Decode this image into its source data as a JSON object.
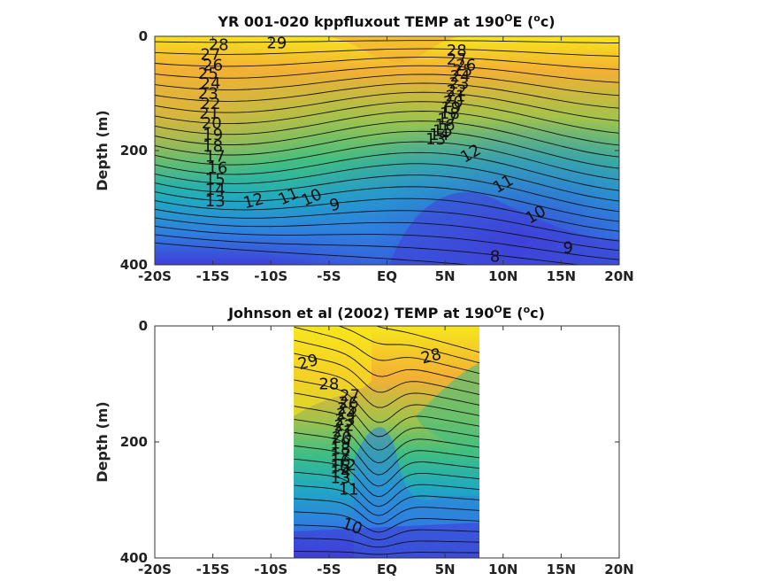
{
  "chart_data": [
    {
      "type": "heatmap",
      "title": "YR 001-020 kppfluxout TEMP at 190",
      "title_sup": "O",
      "title_mid": "E (",
      "title_sup2": "o",
      "title_end": "c)",
      "ylabel": "Depth (m)",
      "xlim": [
        -20,
        20
      ],
      "ylim": [
        0,
        400
      ],
      "xtick_values": [
        -20,
        -15,
        -10,
        -5,
        0,
        5,
        10,
        15,
        20
      ],
      "xtick_labels": [
        "-20S",
        "-15S",
        "-10S",
        "-5S",
        "EQ",
        "5N",
        "10N",
        "15N",
        "20N"
      ],
      "ytick_values": [
        0,
        200,
        400
      ],
      "ytick_labels": [
        "0",
        "200",
        "400"
      ],
      "data_extent": [
        -20,
        20
      ],
      "colorscale": [
        "#3f3fd8",
        "#2f7fe0",
        "#1fa9c2",
        "#3fbf82",
        "#a6c24a",
        "#f3b034",
        "#f6e61c"
      ],
      "contour_labels": [
        {
          "text": "29",
          "x": -9.5,
          "y": 12,
          "angle": 0
        },
        {
          "text": "28",
          "x": -14.5,
          "y": 15,
          "angle": 0
        },
        {
          "text": "28",
          "x": 6.0,
          "y": 25,
          "angle": 0
        },
        {
          "text": "27",
          "x": -15.2,
          "y": 32,
          "angle": 0
        },
        {
          "text": "26",
          "x": -15.0,
          "y": 50,
          "angle": 0
        },
        {
          "text": "25",
          "x": -15.4,
          "y": 65,
          "angle": 0
        },
        {
          "text": "24",
          "x": -15.2,
          "y": 82,
          "angle": 0
        },
        {
          "text": "23",
          "x": -15.4,
          "y": 100,
          "angle": 0
        },
        {
          "text": "22",
          "x": -15.2,
          "y": 118,
          "angle": 0
        },
        {
          "text": "21",
          "x": -15.3,
          "y": 135,
          "angle": 0
        },
        {
          "text": "20",
          "x": -15.1,
          "y": 152,
          "angle": 0
        },
        {
          "text": "19",
          "x": -15.0,
          "y": 172,
          "angle": 0
        },
        {
          "text": "18",
          "x": -15.0,
          "y": 192,
          "angle": 0
        },
        {
          "text": "17",
          "x": -14.8,
          "y": 210,
          "angle": 0
        },
        {
          "text": "16",
          "x": -14.6,
          "y": 230,
          "angle": 0
        },
        {
          "text": "15",
          "x": -14.8,
          "y": 250,
          "angle": 0
        },
        {
          "text": "14",
          "x": -14.8,
          "y": 268,
          "angle": 0
        },
        {
          "text": "13",
          "x": -14.8,
          "y": 288,
          "angle": 0
        },
        {
          "text": "12",
          "x": -11.5,
          "y": 288,
          "angle": -15
        },
        {
          "text": "11",
          "x": -8.5,
          "y": 280,
          "angle": -25
        },
        {
          "text": "10",
          "x": -6.5,
          "y": 282,
          "angle": -25
        },
        {
          "text": "9",
          "x": -4.5,
          "y": 295,
          "angle": -15
        },
        {
          "text": "8",
          "x": 9.3,
          "y": 385,
          "angle": 0
        },
        {
          "text": "27",
          "x": 6.0,
          "y": 40,
          "angle": 0
        },
        {
          "text": "26",
          "x": 6.8,
          "y": 50,
          "angle": 0
        },
        {
          "text": "25",
          "x": 6.5,
          "y": 60,
          "angle": 0
        },
        {
          "text": "24",
          "x": 6.3,
          "y": 70,
          "angle": 0
        },
        {
          "text": "23",
          "x": 6.2,
          "y": 82,
          "angle": 0
        },
        {
          "text": "22",
          "x": 6.0,
          "y": 95,
          "angle": 0
        },
        {
          "text": "21",
          "x": 5.9,
          "y": 105,
          "angle": 0
        },
        {
          "text": "20",
          "x": 5.7,
          "y": 115,
          "angle": 0
        },
        {
          "text": "19",
          "x": 5.5,
          "y": 125,
          "angle": 0
        },
        {
          "text": "18",
          "x": 5.4,
          "y": 135,
          "angle": 0
        },
        {
          "text": "17",
          "x": 5.2,
          "y": 145,
          "angle": 0
        },
        {
          "text": "16",
          "x": 5.0,
          "y": 155,
          "angle": 0
        },
        {
          "text": "15",
          "x": 4.8,
          "y": 165,
          "angle": 0
        },
        {
          "text": "14",
          "x": 4.5,
          "y": 172,
          "angle": 0
        },
        {
          "text": "13",
          "x": 4.2,
          "y": 180,
          "angle": 0
        },
        {
          "text": "12",
          "x": 7.2,
          "y": 205,
          "angle": -30
        },
        {
          "text": "11",
          "x": 10.0,
          "y": 258,
          "angle": -30
        },
        {
          "text": "10",
          "x": 12.8,
          "y": 312,
          "angle": -30
        },
        {
          "text": "9",
          "x": 15.6,
          "y": 370,
          "angle": 0
        }
      ]
    },
    {
      "type": "heatmap",
      "title": "Johnson et al (2002) TEMP at 190",
      "title_sup": "O",
      "title_mid": "E (",
      "title_sup2": "o",
      "title_end": "c)",
      "ylabel": "Depth (m)",
      "xlim": [
        -20,
        20
      ],
      "ylim": [
        0,
        400
      ],
      "xtick_values": [
        -20,
        -15,
        -10,
        -5,
        0,
        5,
        10,
        15,
        20
      ],
      "xtick_labels": [
        "-20S",
        "-15S",
        "-10S",
        "-5S",
        "EQ",
        "5N",
        "10N",
        "15N",
        "20N"
      ],
      "ytick_values": [
        0,
        200,
        400
      ],
      "ytick_labels": [
        "0",
        "200",
        "400"
      ],
      "data_extent": [
        -8,
        8
      ],
      "colorscale": [
        "#3f3fd8",
        "#2f7fe0",
        "#1fa9c2",
        "#3fbf82",
        "#a6c24a",
        "#f3b034",
        "#f6e61c"
      ],
      "contour_labels": [
        {
          "text": "29",
          "x": -6.8,
          "y": 62,
          "angle": -15
        },
        {
          "text": "28",
          "x": -5.0,
          "y": 100,
          "angle": 0
        },
        {
          "text": "28",
          "x": 3.8,
          "y": 52,
          "angle": -15
        },
        {
          "text": "27",
          "x": -3.2,
          "y": 120,
          "angle": 0
        },
        {
          "text": "26",
          "x": -3.3,
          "y": 132,
          "angle": 0
        },
        {
          "text": "25",
          "x": -3.4,
          "y": 142,
          "angle": 0
        },
        {
          "text": "24",
          "x": -3.5,
          "y": 152,
          "angle": 0
        },
        {
          "text": "23",
          "x": -3.6,
          "y": 162,
          "angle": 0
        },
        {
          "text": "22",
          "x": -3.7,
          "y": 172,
          "angle": 0
        },
        {
          "text": "21",
          "x": -3.8,
          "y": 182,
          "angle": 0
        },
        {
          "text": "20",
          "x": -3.9,
          "y": 192,
          "angle": 0
        },
        {
          "text": "19",
          "x": -4.0,
          "y": 202,
          "angle": 0
        },
        {
          "text": "18",
          "x": -4.0,
          "y": 212,
          "angle": 0
        },
        {
          "text": "17",
          "x": -4.0,
          "y": 222,
          "angle": 0
        },
        {
          "text": "16",
          "x": -4.0,
          "y": 232,
          "angle": 0
        },
        {
          "text": "15",
          "x": -4.0,
          "y": 242,
          "angle": 0
        },
        {
          "text": "14",
          "x": -4.0,
          "y": 252,
          "angle": 0
        },
        {
          "text": "13",
          "x": -4.0,
          "y": 262,
          "angle": 0
        },
        {
          "text": "12",
          "x": -3.5,
          "y": 240,
          "angle": 0
        },
        {
          "text": "11",
          "x": -3.3,
          "y": 282,
          "angle": 0
        },
        {
          "text": "10",
          "x": -3.0,
          "y": 345,
          "angle": 20
        }
      ]
    }
  ]
}
